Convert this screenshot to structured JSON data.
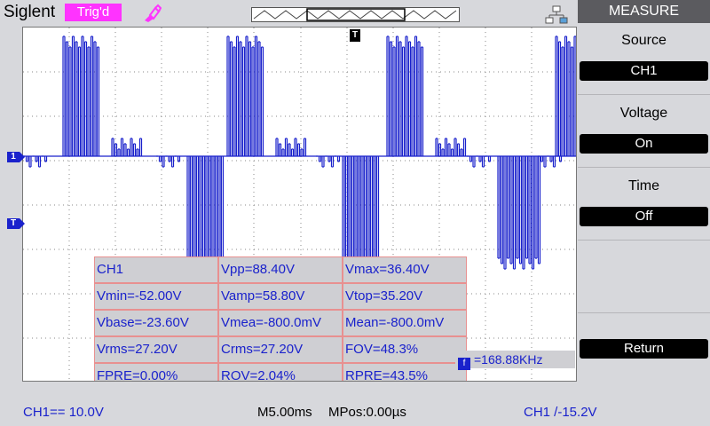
{
  "header": {
    "brand": "Siglent",
    "trigger_status": "Trig'd",
    "probe_icon": "probe-icon",
    "network_icon": "network-icon"
  },
  "colors": {
    "trace": "#1a22cc",
    "trigger_badge": "#ff33ff",
    "grid": "#8a8a8a"
  },
  "markers": {
    "channel1": "1",
    "trigger_level": "T",
    "trigger_position": "T"
  },
  "measurements": [
    [
      "CH1",
      "Vpp=88.40V",
      "Vmax=36.40V"
    ],
    [
      "Vmin=-52.00V",
      "Vamp=58.80V",
      "Vtop=35.20V"
    ],
    [
      "Vbase=-23.60V",
      "Vmea=-800.0mV",
      "Mean=-800.0mV"
    ],
    [
      "Vrms=27.20V",
      "Crms=27.20V",
      "FOV=48.3%"
    ],
    [
      "FPRE=0.00%",
      "ROV=2.04%",
      "RPRE=43.5%"
    ]
  ],
  "frequency": {
    "icon": "f",
    "value": "=168.88KHz"
  },
  "status": {
    "channel": "CH1== 10.0V",
    "timebase": "M5.00ms",
    "position": "MPos:0.00µs",
    "trigger": "CH1 /-15.2V"
  },
  "menu": {
    "title": "MEASURE",
    "source_label": "Source",
    "source_value": "CH1",
    "voltage_label": "Voltage",
    "voltage_value": "On",
    "time_label": "Time",
    "time_value": "Off",
    "return_label": "Return"
  }
}
